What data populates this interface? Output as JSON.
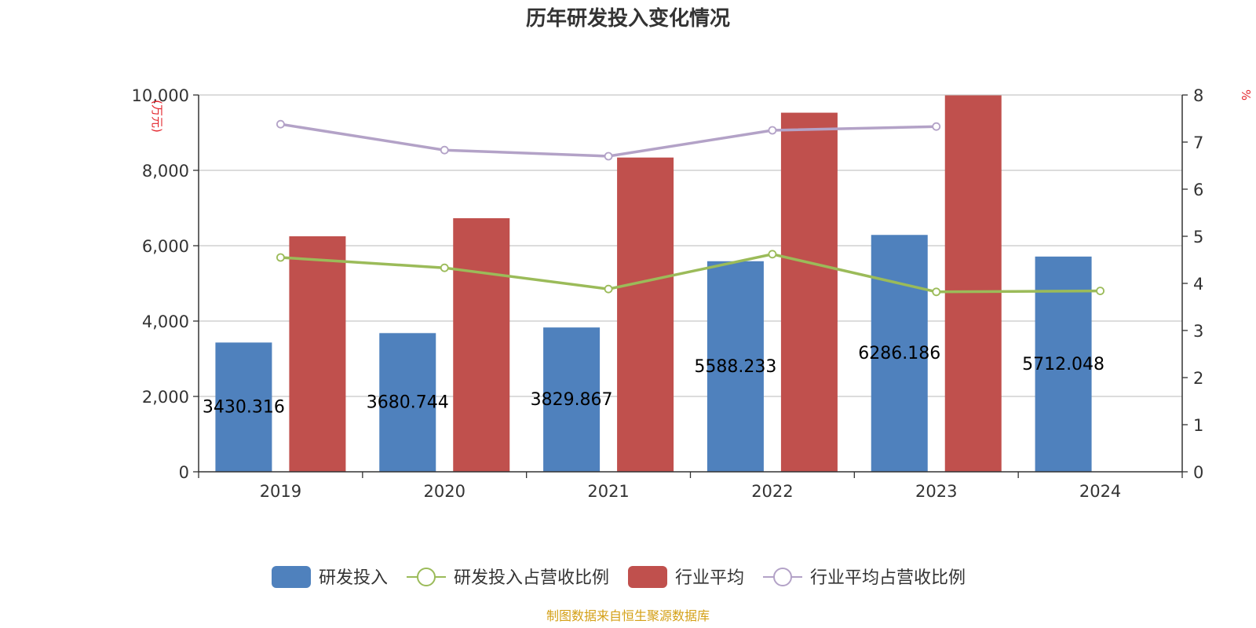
{
  "chart_data": {
    "type": "bar",
    "title": "历年研发投入变化情况",
    "categories": [
      "2019",
      "2020",
      "2021",
      "2022",
      "2023",
      "2024"
    ],
    "y_left": {
      "unit_label": "(万元)",
      "ylim": [
        0,
        10000
      ],
      "ticks": [
        "0",
        "2,000",
        "4,000",
        "6,000",
        "8,000",
        "10,000"
      ]
    },
    "y_right": {
      "unit_label": "%",
      "ylim": [
        0,
        8
      ],
      "ticks": [
        "0",
        "1",
        "2",
        "3",
        "4",
        "5",
        "6",
        "7",
        "8"
      ]
    },
    "series": [
      {
        "name": "研发投入",
        "type": "bar",
        "axis": "left",
        "color": "#4f81bd",
        "values": [
          3430.316,
          3680.744,
          3829.867,
          5588.233,
          6286.186,
          5712.048
        ],
        "labels": [
          "3430.316",
          "3680.744",
          "3829.867",
          "5588.233",
          "6286.186",
          "5712.048"
        ]
      },
      {
        "name": "研发投入占营收比例",
        "type": "line",
        "axis": "right",
        "color": "#9bbb59",
        "values": [
          4.55,
          4.33,
          3.88,
          4.62,
          3.82,
          3.84
        ]
      },
      {
        "name": "行业平均",
        "type": "bar",
        "axis": "left",
        "color": "#c0504d",
        "values": [
          6250,
          6730,
          8340,
          9530,
          9990,
          null
        ]
      },
      {
        "name": "行业平均占营收比例",
        "type": "line",
        "axis": "right",
        "color": "#b3a2c7",
        "values": [
          7.38,
          6.83,
          6.7,
          7.25,
          7.33,
          null
        ]
      }
    ],
    "grid": true,
    "legend_position": "bottom"
  },
  "source_text": "制图数据来自恒生聚源数据库"
}
